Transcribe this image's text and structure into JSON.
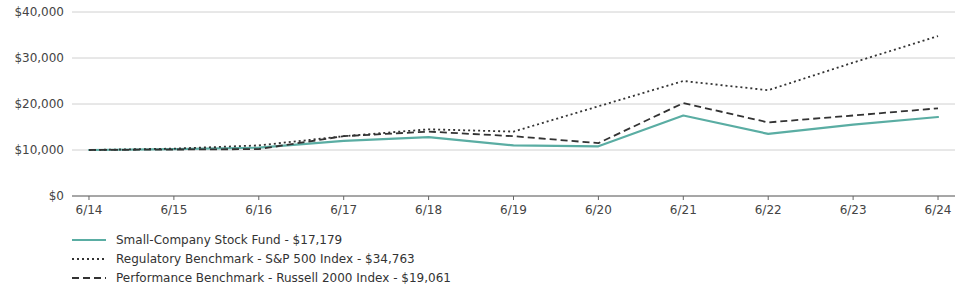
{
  "chart_data": {
    "type": "line",
    "categories": [
      "6/14",
      "6/15",
      "6/16",
      "6/17",
      "6/18",
      "6/19",
      "6/20",
      "6/21",
      "6/22",
      "6/23",
      "6/24"
    ],
    "series": [
      {
        "name": "Small-Company Stock Fund - $17,179",
        "color": "#5aada3",
        "line_style": "solid",
        "values": [
          10000,
          10200,
          10500,
          12000,
          12800,
          11000,
          10800,
          17500,
          13500,
          15500,
          17179
        ]
      },
      {
        "name": "Regulatory Benchmark - S&P 500 Index - $34,763",
        "color": "#333333",
        "line_style": "dotted",
        "values": [
          10000,
          10300,
          11000,
          13000,
          14500,
          14000,
          19500,
          25000,
          23000,
          29000,
          34763
        ]
      },
      {
        "name": "Performance Benchmark - Russell 2000 Index - $19,061",
        "color": "#333333",
        "line_style": "dashed",
        "values": [
          10000,
          10100,
          10200,
          13000,
          14000,
          13000,
          11500,
          20200,
          16000,
          17500,
          19061
        ]
      }
    ],
    "ylim": [
      0,
      40000
    ],
    "yticks": [
      {
        "value": 0,
        "label": "$0"
      },
      {
        "value": 10000,
        "label": "$10,000"
      },
      {
        "value": 20000,
        "label": "$20,000"
      },
      {
        "value": 30000,
        "label": "$30,000"
      },
      {
        "value": 40000,
        "label": "$40,000"
      }
    ],
    "grid": true,
    "legend": "bottom"
  }
}
